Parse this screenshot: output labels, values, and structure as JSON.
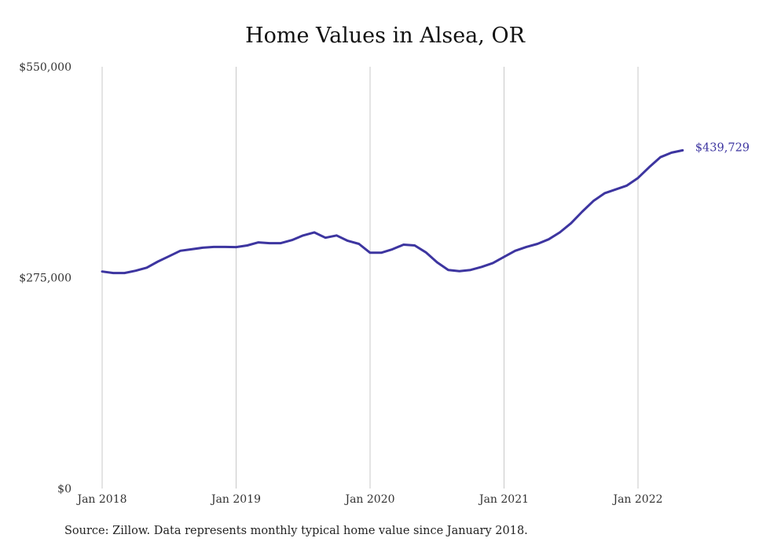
{
  "chart_data": {
    "type": "line",
    "title": "Home Values in Alsea, OR",
    "xlabel": "",
    "ylabel": "",
    "ylim": [
      0,
      550000
    ],
    "yticks": [
      {
        "value": 0,
        "label": "$0"
      },
      {
        "value": 275000,
        "label": "$275,000"
      },
      {
        "value": 550000,
        "label": "$550,000"
      }
    ],
    "xticks": [
      {
        "value": "2018-01",
        "label": "Jan 2018"
      },
      {
        "value": "2019-01",
        "label": "Jan 2019"
      },
      {
        "value": "2020-01",
        "label": "Jan 2020"
      },
      {
        "value": "2021-01",
        "label": "Jan 2021"
      },
      {
        "value": "2022-01",
        "label": "Jan 2022"
      }
    ],
    "grid": {
      "vertical": true,
      "horizontal": false
    },
    "line_color": "#3d35a0",
    "last_value_label": "$439,729",
    "series": [
      {
        "x": [
          "2018-01",
          "2018-02",
          "2018-03",
          "2018-04",
          "2018-05",
          "2018-06",
          "2018-07",
          "2018-08",
          "2018-09",
          "2018-10",
          "2018-11",
          "2018-12",
          "2019-01",
          "2019-02",
          "2019-03",
          "2019-04",
          "2019-05",
          "2019-06",
          "2019-07",
          "2019-08",
          "2019-09",
          "2019-10",
          "2019-11",
          "2019-12",
          "2020-01",
          "2020-02",
          "2020-03",
          "2020-04",
          "2020-05",
          "2020-06",
          "2020-07",
          "2020-08",
          "2020-09",
          "2020-10",
          "2020-11",
          "2020-12",
          "2021-01",
          "2021-02",
          "2021-03",
          "2021-04",
          "2021-05",
          "2021-06",
          "2021-07",
          "2021-08",
          "2021-09",
          "2021-10",
          "2021-11",
          "2021-12",
          "2022-01",
          "2022-02",
          "2022-03",
          "2022-04",
          "2022-05"
        ],
        "values": [
          283000,
          281000,
          281000,
          284000,
          288000,
          296000,
          303000,
          310000,
          312000,
          314000,
          315000,
          315000,
          314800,
          317000,
          321000,
          320000,
          320000,
          324000,
          330000,
          334000,
          327000,
          330000,
          323000,
          319000,
          307500,
          307500,
          312000,
          318000,
          317000,
          308000,
          295000,
          285000,
          283500,
          285000,
          289000,
          294000,
          302000,
          310000,
          315000,
          319000,
          325000,
          334000,
          346000,
          361000,
          375000,
          385000,
          390000,
          395000,
          405000,
          419000,
          432000,
          438000,
          441000
        ]
      }
    ]
  },
  "source_note": "Source: Zillow. Data represents monthly typical home value since January 2018."
}
